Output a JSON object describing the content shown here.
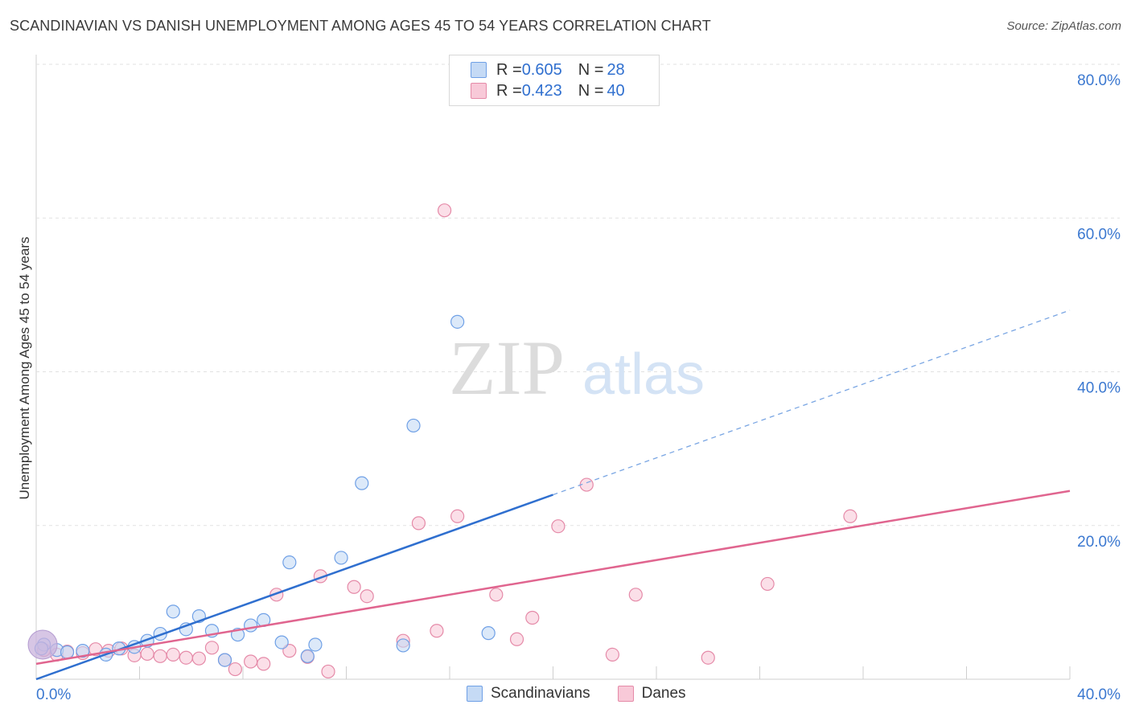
{
  "title": "SCANDINAVIAN VS DANISH UNEMPLOYMENT AMONG AGES 45 TO 54 YEARS CORRELATION CHART",
  "source": "Source: ZipAtlas.com",
  "watermark": {
    "zip": "ZIP",
    "atlas": "atlas"
  },
  "legend": {
    "rows": [
      {
        "r_label": "R = ",
        "r_value": "0.605",
        "n_label": "N = ",
        "n_value": "28",
        "color": "#6fa0e6",
        "fill": "#c5daf5"
      },
      {
        "r_label": "R = ",
        "r_value": "0.423",
        "n_label": "N = ",
        "n_value": "40",
        "color": "#e58aa8",
        "fill": "#f8c9d8"
      }
    ]
  },
  "bottom_legend": [
    "Scandinavians",
    "Danes"
  ],
  "chart_data": {
    "type": "scatter",
    "title": "SCANDINAVIAN VS DANISH UNEMPLOYMENT AMONG AGES 45 TO 54 YEARS CORRELATION CHART",
    "ylabel": "Unemployment Among Ages 45 to 54 years",
    "xlabel": "",
    "xlim": [
      0,
      40
    ],
    "ylim": [
      0,
      80
    ],
    "x_tick_labels": [
      "0.0%",
      "40.0%"
    ],
    "y_tick_labels": [
      "20.0%",
      "40.0%",
      "60.0%",
      "80.0%"
    ],
    "y_ticks": [
      20,
      40,
      60,
      80
    ],
    "grid": true,
    "series": [
      {
        "name": "Scandinavians",
        "color": "#6fa0e6",
        "fill": "#c5daf5",
        "line_color": "#2f6fcf",
        "trend": {
          "x0": 0.0,
          "y0": 0.0,
          "x1": 40.0,
          "y1": 48.0,
          "solid_until_x": 20.0
        },
        "points": [
          [
            0.3,
            4.5
          ],
          [
            0.8,
            3.8
          ],
          [
            1.2,
            3.5
          ],
          [
            1.8,
            3.7
          ],
          [
            2.7,
            3.2
          ],
          [
            3.2,
            4.0
          ],
          [
            3.8,
            4.2
          ],
          [
            4.3,
            5.0
          ],
          [
            4.8,
            5.9
          ],
          [
            5.3,
            8.8
          ],
          [
            5.8,
            6.5
          ],
          [
            6.3,
            8.2
          ],
          [
            6.8,
            6.3
          ],
          [
            7.3,
            2.5
          ],
          [
            7.8,
            5.8
          ],
          [
            8.3,
            7.0
          ],
          [
            8.8,
            7.7
          ],
          [
            9.5,
            4.8
          ],
          [
            9.8,
            15.2
          ],
          [
            10.5,
            3.0
          ],
          [
            10.8,
            4.5
          ],
          [
            11.8,
            15.8
          ],
          [
            12.6,
            25.5
          ],
          [
            14.2,
            4.4
          ],
          [
            14.6,
            33.0
          ],
          [
            16.3,
            46.5
          ],
          [
            17.5,
            6.0
          ],
          [
            0.2,
            4.0
          ]
        ]
      },
      {
        "name": "Danes",
        "color": "#e58aa8",
        "fill": "#f8c9d8",
        "line_color": "#e0658f",
        "trend": {
          "x0": 0.0,
          "y0": 2.0,
          "x1": 40.0,
          "y1": 24.5
        },
        "points": [
          [
            0.3,
            3.8
          ],
          [
            0.8,
            3.2
          ],
          [
            1.2,
            3.6
          ],
          [
            1.8,
            3.4
          ],
          [
            2.3,
            3.9
          ],
          [
            2.8,
            3.7
          ],
          [
            3.3,
            4.0
          ],
          [
            3.8,
            3.1
          ],
          [
            4.3,
            3.3
          ],
          [
            4.8,
            3.0
          ],
          [
            5.3,
            3.2
          ],
          [
            5.8,
            2.8
          ],
          [
            6.3,
            2.7
          ],
          [
            6.8,
            4.1
          ],
          [
            7.3,
            2.5
          ],
          [
            7.7,
            1.3
          ],
          [
            8.3,
            2.3
          ],
          [
            8.8,
            2.0
          ],
          [
            9.3,
            11.0
          ],
          [
            9.8,
            3.7
          ],
          [
            10.5,
            2.9
          ],
          [
            11.0,
            13.4
          ],
          [
            11.3,
            1.0
          ],
          [
            12.3,
            12.0
          ],
          [
            12.8,
            10.8
          ],
          [
            14.2,
            5.0
          ],
          [
            14.8,
            20.3
          ],
          [
            15.5,
            6.3
          ],
          [
            15.8,
            61.0
          ],
          [
            16.3,
            21.2
          ],
          [
            17.8,
            11.0
          ],
          [
            18.6,
            5.2
          ],
          [
            19.2,
            8.0
          ],
          [
            20.2,
            19.9
          ],
          [
            21.3,
            25.3
          ],
          [
            22.3,
            3.2
          ],
          [
            23.2,
            11.0
          ],
          [
            26.0,
            2.8
          ],
          [
            28.3,
            12.4
          ],
          [
            31.5,
            21.2
          ]
        ]
      }
    ]
  }
}
